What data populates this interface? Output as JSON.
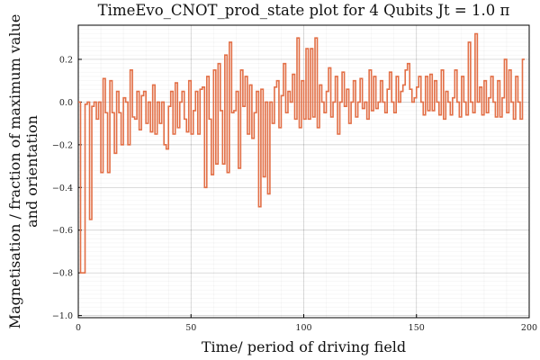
{
  "chart_data": {
    "type": "line",
    "step": true,
    "title": "TimeEvo_CNOT_prod_state plot for 4 Qubits Jt = 1.0 π",
    "xlabel": "Time/ period of driving field",
    "ylabel_lines": [
      "Magnetisation / fraction of maximum value",
      "and orientation"
    ],
    "xlim": [
      0,
      200
    ],
    "ylim": [
      -1.01,
      0.36
    ],
    "xticks": [
      0,
      50,
      100,
      150,
      200
    ],
    "xtick_labels": [
      "0",
      "50",
      "100",
      "150",
      "200"
    ],
    "yticks": [
      -1.0,
      -0.8,
      -0.6,
      -0.4,
      -0.2,
      0.0,
      0.2
    ],
    "ytick_labels": [
      "−1.0",
      "−0.8",
      "−0.6",
      "−0.4",
      "−0.2",
      "0.0",
      "0.2"
    ],
    "grid": true,
    "minor_grid": true,
    "legend": false,
    "line_color": "#e26f46",
    "series": [
      {
        "x_start": 0,
        "x_step": 1,
        "values": [
          0.0,
          -0.8,
          -0.8,
          -0.01,
          0.0,
          -0.55,
          -0.02,
          0.0,
          -0.08,
          0.0,
          -0.33,
          0.11,
          -0.05,
          -0.33,
          0.1,
          -0.05,
          -0.24,
          0.05,
          -0.05,
          -0.2,
          0.02,
          0.0,
          -0.2,
          0.15,
          -0.07,
          -0.08,
          0.05,
          -0.13,
          0.03,
          0.05,
          -0.1,
          0.0,
          -0.14,
          0.08,
          -0.15,
          0.0,
          -0.1,
          0.0,
          -0.2,
          -0.22,
          -0.02,
          0.05,
          -0.15,
          0.09,
          -0.12,
          0.0,
          0.05,
          -0.08,
          -0.14,
          0.1,
          -0.15,
          -0.04,
          0.05,
          -0.15,
          0.06,
          0.07,
          -0.4,
          0.12,
          -0.08,
          -0.34,
          0.15,
          -0.29,
          0.18,
          -0.04,
          -0.29,
          0.22,
          -0.33,
          0.28,
          -0.05,
          -0.04,
          0.05,
          -0.31,
          0.15,
          -0.02,
          0.12,
          -0.15,
          0.08,
          -0.17,
          -0.05,
          0.05,
          -0.49,
          0.06,
          -0.35,
          0.0,
          -0.43,
          0.0,
          -0.1,
          0.07,
          0.1,
          -0.12,
          0.03,
          0.18,
          -0.05,
          0.05,
          0.0,
          0.13,
          -0.08,
          0.3,
          -0.12,
          0.1,
          -0.08,
          0.25,
          -0.08,
          0.25,
          -0.07,
          0.3,
          -0.12,
          0.08,
          0.0,
          -0.05,
          0.05,
          0.16,
          -0.07,
          0.0,
          0.12,
          -0.15,
          0.0,
          0.14,
          -0.02,
          0.06,
          -0.1,
          0.0,
          0.1,
          -0.07,
          0.0,
          0.11,
          -0.03,
          0.0,
          -0.08,
          0.15,
          -0.04,
          0.12,
          -0.03,
          0.0,
          0.1,
          0.0,
          -0.05,
          0.06,
          0.14,
          0.0,
          -0.05,
          0.12,
          0.0,
          0.05,
          0.08,
          0.15,
          0.18,
          0.06,
          0.0,
          0.02,
          0.07,
          0.12,
          0.0,
          -0.06,
          0.12,
          -0.04,
          0.13,
          -0.04,
          0.1,
          0.0,
          -0.06,
          0.15,
          -0.08,
          0.05,
          0.0,
          -0.06,
          0.02,
          0.15,
          0.0,
          -0.07,
          0.12,
          0.0,
          -0.06,
          0.28,
          0.0,
          -0.05,
          0.32,
          0.0,
          0.07,
          -0.06,
          0.1,
          -0.05,
          0.02,
          0.12,
          0.0,
          -0.07,
          0.1,
          -0.07,
          0.02,
          0.2,
          -0.05,
          0.15,
          0.0,
          -0.08,
          0.12,
          0.0,
          -0.08,
          0.2
        ]
      }
    ]
  }
}
